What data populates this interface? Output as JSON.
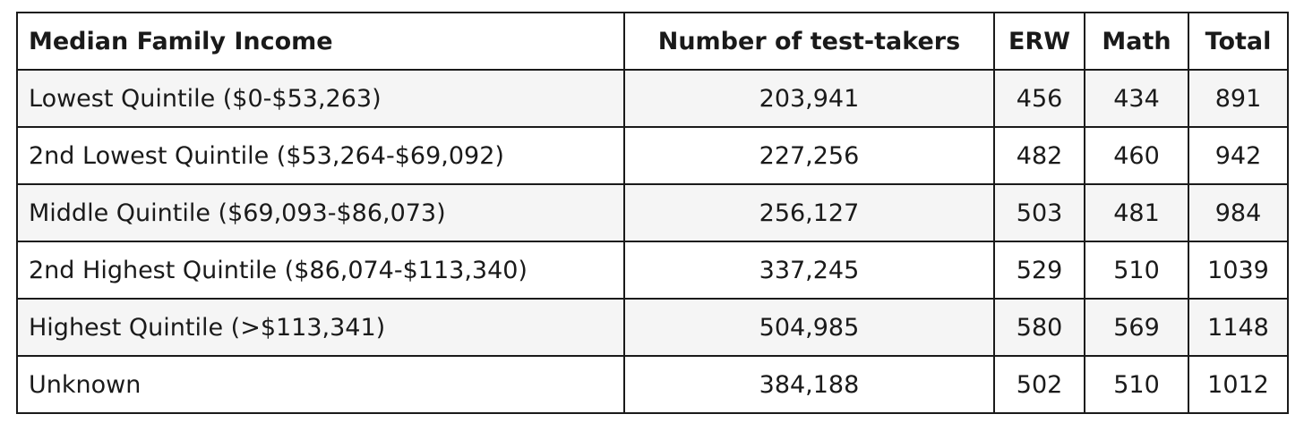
{
  "table": {
    "header": [
      "Median Family Income",
      "Number of test-takers",
      "ERW",
      "Math",
      "Total"
    ],
    "rows": [
      [
        "Lowest Quintile ($0-$53,263)",
        "203,941",
        "456",
        "434",
        "891"
      ],
      [
        "2nd Lowest Quintile ($53,264-$69,092)",
        "227,256",
        "482",
        "460",
        "942"
      ],
      [
        "Middle Quintile ($69,093-$86,073)",
        "256,127",
        "503",
        "481",
        "984"
      ],
      [
        "2nd Highest Quintile ($86,074-$113,340)",
        "337,245",
        "529",
        "510",
        "1039"
      ],
      [
        "Highest Quintile (>$113,341)",
        "504,985",
        "580",
        "569",
        "1148"
      ],
      [
        "Unknown",
        "384,188",
        "502",
        "510",
        "1012"
      ]
    ]
  }
}
